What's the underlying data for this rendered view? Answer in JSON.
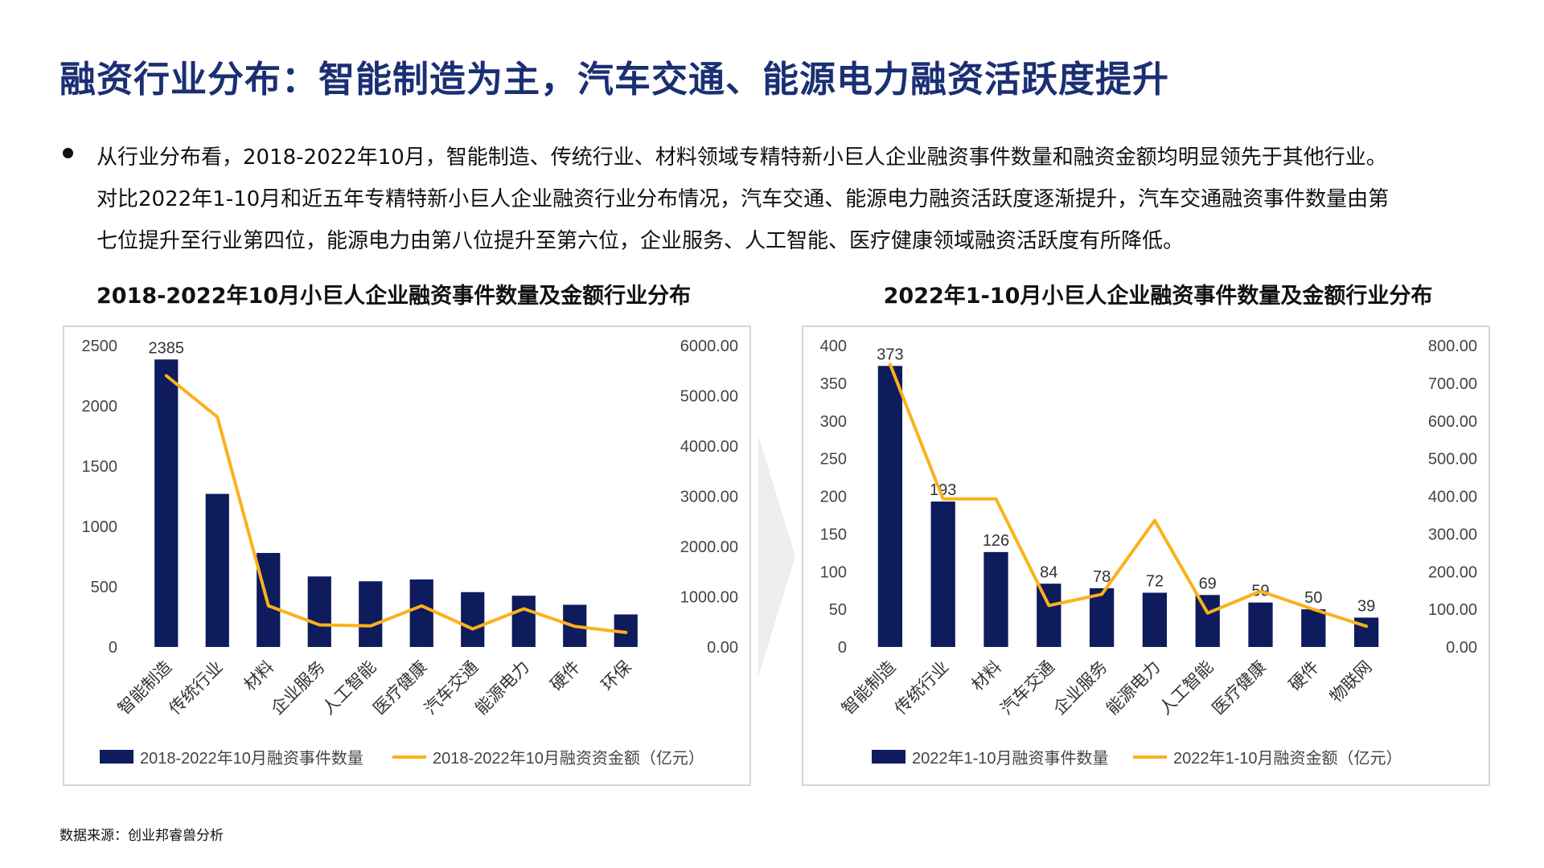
{
  "title": "融资行业分布：智能制造为主，汽车交通、能源电力融资活跃度提升",
  "bullet_lines": [
    "从行业分布看，2018-2022年10月，智能制造、传统行业、材料领域专精特新小巨人企业融资事件数量和融资金额均明显领先于其他行业。",
    "对比2022年1-10月和近五年专精特新小巨人企业融资行业分布情况，汽车交通、能源电力融资活跃度逐渐提升，汽车交通融资事件数量由第",
    "七位提升至行业第四位，能源电力由第八位提升至第六位，企业服务、人工智能、医疗健康领域融资活跃度有所降低。"
  ],
  "source": "数据来源：创业邦睿兽分析",
  "colors": {
    "bar": "#0E1B5C",
    "line": "#FBB11B",
    "title": "#1B2F73"
  },
  "chart_data": [
    {
      "type": "bar+line",
      "title": "2018-2022年10月小巨人企业融资事件数量及金额行业分布",
      "categories": [
        "智能制造",
        "传统行业",
        "材料",
        "企业服务",
        "人工智能",
        "医疗健康",
        "汽车交通",
        "能源电力",
        "硬件",
        "环保"
      ],
      "series": [
        {
          "name": "2018-2022年10月融资事件数量",
          "type": "bar",
          "axis": "left",
          "values": [
            2385,
            1270,
            780,
            585,
            545,
            560,
            455,
            425,
            350,
            270
          ]
        },
        {
          "name": "2018-2022年10月融资资金额（亿元）",
          "type": "line",
          "axis": "right",
          "values": [
            5400,
            4580,
            820,
            440,
            420,
            820,
            360,
            760,
            410,
            290
          ]
        }
      ],
      "data_labels": [
        {
          "index": 0,
          "text": "2385"
        }
      ],
      "left_axis": {
        "min": 0,
        "max": 2500,
        "ticks": [
          "0",
          "500",
          "1000",
          "1500",
          "2000",
          "2500"
        ]
      },
      "right_axis": {
        "min": 0,
        "max": 6000,
        "ticks": [
          "0.00",
          "1000.00",
          "2000.00",
          "3000.00",
          "4000.00",
          "5000.00",
          "6000.00"
        ]
      },
      "legend": "bottom"
    },
    {
      "type": "bar+line",
      "title": "2022年1-10月小巨人企业融资事件数量及金额行业分布",
      "categories": [
        "智能制造",
        "传统行业",
        "材料",
        "汽车交通",
        "企业服务",
        "能源电力",
        "人工智能",
        "医疗健康",
        "硬件",
        "物联网"
      ],
      "series": [
        {
          "name": "2022年1-10月融资事件数量",
          "type": "bar",
          "axis": "left",
          "values": [
            373,
            193,
            126,
            84,
            78,
            72,
            69,
            59,
            50,
            39
          ]
        },
        {
          "name": "2022年1-10月融资金额（亿元）",
          "type": "line",
          "axis": "right",
          "values": [
            750,
            393,
            393,
            110,
            140,
            336,
            90,
            148,
            100,
            55
          ]
        }
      ],
      "data_labels": [
        {
          "index": 0,
          "text": "373"
        },
        {
          "index": 1,
          "text": "193"
        },
        {
          "index": 2,
          "text": "126"
        },
        {
          "index": 3,
          "text": "84"
        },
        {
          "index": 4,
          "text": "78"
        },
        {
          "index": 5,
          "text": "72"
        },
        {
          "index": 6,
          "text": "69"
        },
        {
          "index": 7,
          "text": "59"
        },
        {
          "index": 8,
          "text": "50"
        },
        {
          "index": 9,
          "text": "39"
        }
      ],
      "left_axis": {
        "min": 0,
        "max": 400,
        "ticks": [
          "0",
          "50",
          "100",
          "150",
          "200",
          "250",
          "300",
          "350",
          "400"
        ]
      },
      "right_axis": {
        "min": 0,
        "max": 800,
        "ticks": [
          "0.00",
          "100.00",
          "200.00",
          "300.00",
          "400.00",
          "500.00",
          "600.00",
          "700.00",
          "800.00"
        ]
      },
      "legend": "bottom"
    }
  ]
}
